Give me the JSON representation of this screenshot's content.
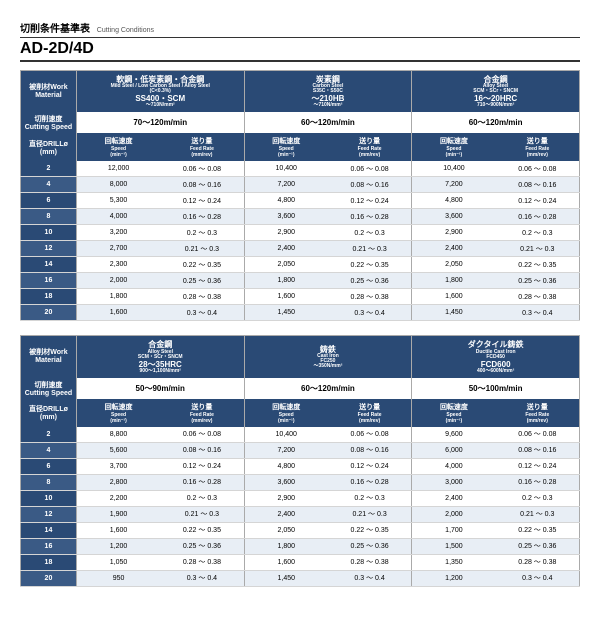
{
  "titles": {
    "small_jp": "切削条件基準表",
    "small_en": "Cutting Conditions",
    "big": "AD-2D/4D"
  },
  "labels": {
    "work_jp": "被削材",
    "work_en": "Work\nMaterial",
    "speed_jp": "切削速度",
    "speed_en": "Cutting Speed",
    "diam_jp": "直径",
    "diam_en": "DRILLø\n(mm)",
    "rot_jp": "回転速度",
    "rot_en": "Speed\n(min⁻¹)",
    "feed_jp": "送り量",
    "feed_en": "Feed Rate\n(mm/rev)"
  },
  "colors": {
    "header_bg": "#2a4a75",
    "row_alt": "#e8eef5",
    "border": "#aaa"
  },
  "table1": {
    "materials": [
      {
        "jp": "軟鋼・低炭素鋼・合金鋼",
        "en": "Mild Steel / Low Carbon Steel / Alloy Steel",
        "detail1": "(C<0.3%)",
        "detail2": "SS400・SCM",
        "detail3": "～710N/mm²"
      },
      {
        "jp": "炭素鋼",
        "en": "Carbon Steel",
        "detail1": "S35C・S50C",
        "detail2": "～210HB",
        "detail3": "～710N/mm²"
      },
      {
        "jp": "合金鋼",
        "en": "Alloy Steel",
        "detail1": "SCM・SCr・SNCM",
        "detail2": "16～20HRC",
        "detail3": "710～900N/mm²"
      }
    ],
    "speed_ranges": [
      "70～120m/min",
      "60～120m/min",
      "60～120m/min"
    ],
    "diameters": [
      2,
      4,
      6,
      8,
      10,
      12,
      14,
      16,
      18,
      20
    ],
    "rows": [
      [
        "12,000",
        "0.06 ～ 0.08",
        "10,400",
        "0.06 ～ 0.08",
        "10,400",
        "0.06 ～ 0.08"
      ],
      [
        "8,000",
        "0.08 ～ 0.16",
        "7,200",
        "0.08 ～ 0.16",
        "7,200",
        "0.08 ～ 0.16"
      ],
      [
        "5,300",
        "0.12 ～ 0.24",
        "4,800",
        "0.12 ～ 0.24",
        "4,800",
        "0.12 ～ 0.24"
      ],
      [
        "4,000",
        "0.16 ～ 0.28",
        "3,600",
        "0.16 ～ 0.28",
        "3,600",
        "0.16 ～ 0.28"
      ],
      [
        "3,200",
        "0.2 ～ 0.3",
        "2,900",
        "0.2 ～ 0.3",
        "2,900",
        "0.2 ～ 0.3"
      ],
      [
        "2,700",
        "0.21 ～ 0.3",
        "2,400",
        "0.21 ～ 0.3",
        "2,400",
        "0.21 ～ 0.3"
      ],
      [
        "2,300",
        "0.22 ～ 0.35",
        "2,050",
        "0.22 ～ 0.35",
        "2,050",
        "0.22 ～ 0.35"
      ],
      [
        "2,000",
        "0.25 ～ 0.36",
        "1,800",
        "0.25 ～ 0.36",
        "1,800",
        "0.25 ～ 0.36"
      ],
      [
        "1,800",
        "0.28 ～ 0.38",
        "1,600",
        "0.28 ～ 0.38",
        "1,600",
        "0.28 ～ 0.38"
      ],
      [
        "1,600",
        "0.3 ～ 0.4",
        "1,450",
        "0.3 ～ 0.4",
        "1,450",
        "0.3 ～ 0.4"
      ]
    ]
  },
  "table2": {
    "materials": [
      {
        "jp": "合金鋼",
        "en": "Alloy Steel",
        "detail1": "SCM・SCr・SNCM",
        "detail2": "28～35HRC",
        "detail3": "900～1,100N/mm²"
      },
      {
        "jp": "鋳鉄",
        "en": "Cast Iron",
        "detail1": "FC250",
        "detail2": "",
        "detail3": "～350N/mm²"
      },
      {
        "jp": "ダクタイル鋳鉄",
        "en": "Ductile Cast Iron",
        "detail1": "FCD450",
        "detail2": "FCD600",
        "detail3": "400～600N/mm²"
      }
    ],
    "speed_ranges": [
      "50～90m/min",
      "60～120m/min",
      "50～100m/min"
    ],
    "diameters": [
      2,
      4,
      6,
      8,
      10,
      12,
      14,
      16,
      18,
      20
    ],
    "rows": [
      [
        "8,800",
        "0.06 ～ 0.08",
        "10,400",
        "0.06 ～ 0.08",
        "9,600",
        "0.06 ～ 0.08"
      ],
      [
        "5,600",
        "0.08 ～ 0.16",
        "7,200",
        "0.08 ～ 0.16",
        "6,000",
        "0.08 ～ 0.16"
      ],
      [
        "3,700",
        "0.12 ～ 0.24",
        "4,800",
        "0.12 ～ 0.24",
        "4,000",
        "0.12 ～ 0.24"
      ],
      [
        "2,800",
        "0.16 ～ 0.28",
        "3,600",
        "0.16 ～ 0.28",
        "3,000",
        "0.16 ～ 0.28"
      ],
      [
        "2,200",
        "0.2 ～ 0.3",
        "2,900",
        "0.2 ～ 0.3",
        "2,400",
        "0.2 ～ 0.3"
      ],
      [
        "1,900",
        "0.21 ～ 0.3",
        "2,400",
        "0.21 ～ 0.3",
        "2,000",
        "0.21 ～ 0.3"
      ],
      [
        "1,600",
        "0.22 ～ 0.35",
        "2,050",
        "0.22 ～ 0.35",
        "1,700",
        "0.22 ～ 0.35"
      ],
      [
        "1,200",
        "0.25 ～ 0.36",
        "1,800",
        "0.25 ～ 0.36",
        "1,500",
        "0.25 ～ 0.36"
      ],
      [
        "1,050",
        "0.28 ～ 0.38",
        "1,600",
        "0.28 ～ 0.38",
        "1,350",
        "0.28 ～ 0.38"
      ],
      [
        "950",
        "0.3 ～ 0.4",
        "1,450",
        "0.3 ～ 0.4",
        "1,200",
        "0.3 ～ 0.4"
      ]
    ]
  }
}
